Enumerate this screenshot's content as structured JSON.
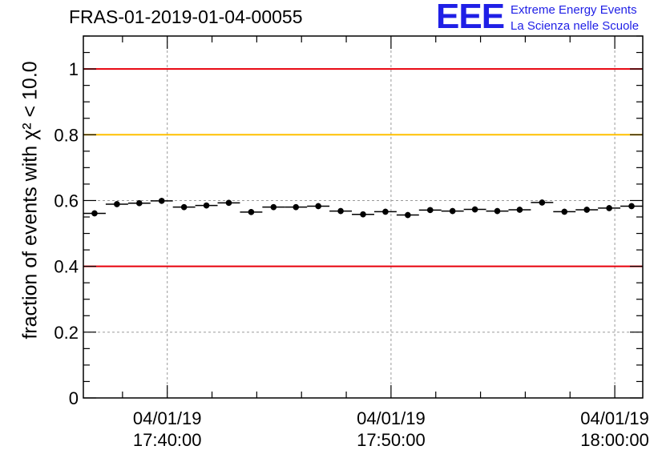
{
  "title": "FRAS-01-2019-01-04-00055",
  "logo": {
    "mark": "EEE",
    "line1": "Extreme Energy Events",
    "line2": "La Scienza nelle Scuole",
    "color": "#1f1fe6"
  },
  "chart_data": {
    "type": "scatter",
    "ylabel": "fraction of events with χ² < 10.0",
    "ylim": [
      0,
      1.1
    ],
    "yticks": [
      "0",
      "0.2",
      "0.4",
      "0.6",
      "0.8",
      "1"
    ],
    "ytick_values": [
      0,
      0.2,
      0.4,
      0.6,
      0.8,
      1
    ],
    "xlim": [
      "2019-01-04 17:36:15",
      "2019-01-04 18:01:15"
    ],
    "xtick_labels": [
      {
        "date": "04/01/19",
        "time": "17:40:00",
        "value": "2019-01-04 17:40:00"
      },
      {
        "date": "04/01/19",
        "time": "17:50:00",
        "value": "2019-01-04 17:50:00"
      },
      {
        "date": "04/01/19",
        "time": "18:00:00",
        "value": "2019-01-04 18:00:00"
      }
    ],
    "grid": true,
    "reference_lines": [
      {
        "y": 1.0,
        "color": "#e8000b"
      },
      {
        "y": 0.8,
        "color": "#ffc000"
      },
      {
        "y": 0.4,
        "color": "#e8000b"
      }
    ],
    "series": [
      {
        "x_start": "2019-01-04 17:36:15",
        "bin_minutes": 1,
        "values": [
          0.561,
          0.589,
          0.592,
          0.599,
          0.58,
          0.585,
          0.593,
          0.565,
          0.58,
          0.58,
          0.583,
          0.568,
          0.558,
          0.566,
          0.556,
          0.571,
          0.568,
          0.573,
          0.568,
          0.572,
          0.594,
          0.566,
          0.572,
          0.577,
          0.583
        ],
        "error": 0.009,
        "color": "#000000"
      }
    ]
  }
}
